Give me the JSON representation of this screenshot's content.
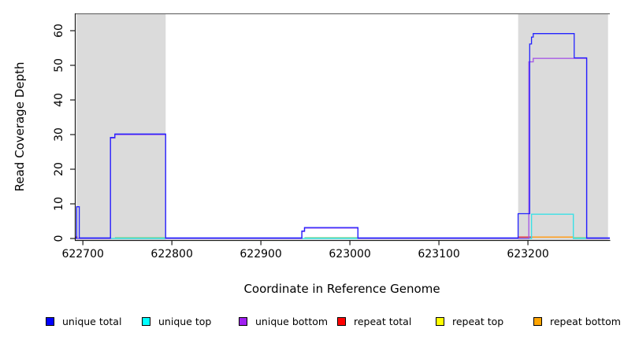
{
  "figure": {
    "xlabel": "Coordinate in Reference Genome",
    "ylabel": "Read Coverage Depth"
  },
  "chart_data": {
    "type": "line",
    "subtype": "step-coverage",
    "title": "",
    "xlabel": "Coordinate in Reference Genome",
    "ylabel": "Read Coverage Depth",
    "xlim": [
      622691,
      623292
    ],
    "ylim": [
      0,
      65
    ],
    "x_ticks": [
      622700,
      622800,
      622900,
      623000,
      623100,
      623200
    ],
    "y_ticks": [
      0,
      10,
      20,
      30,
      40,
      50,
      60
    ],
    "grid": false,
    "legend_position": "bottom",
    "highlight_regions": [
      {
        "x0": 622693,
        "x1": 622793,
        "color": "#dbdbdb"
      },
      {
        "x0": 623189,
        "x1": 623290,
        "color": "#dbdbdb"
      }
    ],
    "series": [
      {
        "name": "unique total",
        "color": "#2222ff",
        "legend_color": "#0000ff",
        "steps": [
          [
            622691,
            0
          ],
          [
            622693,
            9
          ],
          [
            622696,
            0
          ],
          [
            622731,
            29
          ],
          [
            622736,
            30
          ],
          [
            622793,
            0
          ],
          [
            622946,
            2
          ],
          [
            622949,
            3
          ],
          [
            623009,
            0
          ],
          [
            623189,
            7
          ],
          [
            623202,
            56
          ],
          [
            623204,
            58
          ],
          [
            623206,
            59
          ],
          [
            623252,
            52
          ],
          [
            623266,
            0
          ],
          [
            623292,
            0
          ]
        ]
      },
      {
        "name": "unique top",
        "color": "#3ae0e6",
        "legend_color": "#00ffff",
        "steps": [
          [
            622691,
            0
          ],
          [
            623204,
            7
          ],
          [
            623251,
            0
          ],
          [
            623292,
            0
          ]
        ]
      },
      {
        "name": "unique bottom",
        "color": "#a14ce6",
        "legend_color": "#a020f0",
        "steps": [
          [
            622691,
            0
          ],
          [
            622731,
            29
          ],
          [
            622736,
            30
          ],
          [
            622793,
            0
          ],
          [
            622946,
            2
          ],
          [
            622949,
            3
          ],
          [
            623009,
            0
          ],
          [
            623201,
            51
          ],
          [
            623206,
            52
          ],
          [
            623266,
            0
          ],
          [
            623292,
            0
          ]
        ]
      },
      {
        "name": "repeat total",
        "color": "#e03a44",
        "legend_color": "#ff0000",
        "segments": [
          {
            "x0": 622691,
            "x1": 622694,
            "value": 0.4
          },
          {
            "x0": 623189,
            "x1": 623205,
            "value": 0.4
          }
        ]
      },
      {
        "name": "repeat top",
        "color": "#ffff00",
        "legend_color": "#ffff00",
        "segments": []
      },
      {
        "name": "repeat bottom",
        "color": "#ff9e1c",
        "legend_color": "#ffa500",
        "segments": [
          {
            "x0": 623205,
            "x1": 623251,
            "value": 0.4
          }
        ]
      }
    ],
    "baseline_blend_segments": [
      {
        "x0": 622736,
        "x1": 622793,
        "value": 0.2,
        "color": "#7ccf7c"
      },
      {
        "x0": 622949,
        "x1": 623009,
        "value": 0.2,
        "color": "#7ccf7c"
      },
      {
        "x0": 623251,
        "x1": 623266,
        "value": 0.2,
        "color": "#7ccf7c"
      }
    ]
  },
  "legend_layout_order": [
    "unique total",
    "unique top",
    "unique bottom",
    "repeat total",
    "repeat top",
    "repeat bottom"
  ]
}
